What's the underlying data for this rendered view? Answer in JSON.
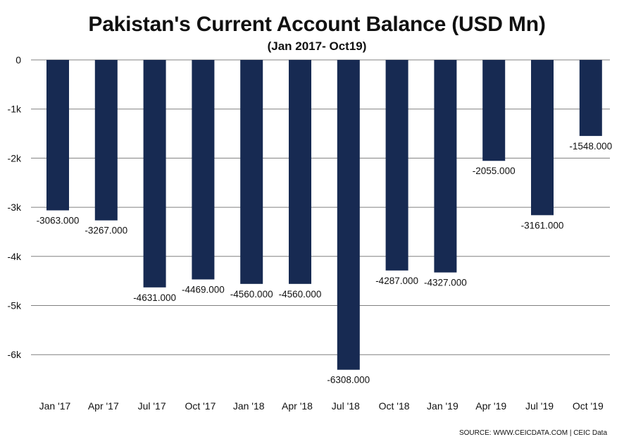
{
  "chart_data": {
    "type": "bar",
    "title": "Pakistan's Current Account Balance (USD Mn)",
    "subtitle": "(Jan 2017- Oct19)",
    "categories": [
      "Jan '17",
      "Apr '17",
      "Jul '17",
      "Oct '17",
      "Jan '18",
      "Apr '18",
      "Jul '18",
      "Oct '18",
      "Jan '19",
      "Apr '19",
      "Jul '19",
      "Oct '19"
    ],
    "values": [
      -3063,
      -3267,
      -4631,
      -4469,
      -4560,
      -4560,
      -6308,
      -4287,
      -4327,
      -2055,
      -3161,
      -1548
    ],
    "data_labels": [
      "-3063.000",
      "-3267.000",
      "-4631.000",
      "-4469.000",
      "-4560.000",
      "-4560.000",
      "-6308.000",
      "-4287.000",
      "-4327.000",
      "-2055.000",
      "-3161.000",
      "-1548.000"
    ],
    "yticks": [
      0,
      -1000,
      -2000,
      -3000,
      -4000,
      -5000,
      -6000
    ],
    "ytick_labels": [
      "0",
      "-1k",
      "-2k",
      "-3k",
      "-4k",
      "-5k",
      "-6k"
    ],
    "ylim": [
      -6600,
      0
    ],
    "xlabel": "",
    "ylabel": "",
    "grid": true,
    "colors": {
      "bar": "#172a52",
      "grid": "#808080",
      "text": "#111111"
    }
  },
  "source": "SOURCE: WWW.CEICDATA.COM | CEIC Data"
}
